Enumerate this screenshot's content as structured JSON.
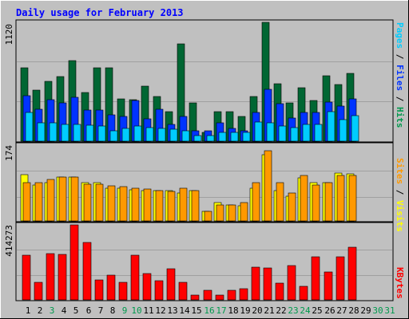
{
  "chart_data": {
    "type": "bar",
    "title": "Daily usage for February 2013",
    "days": [
      "1",
      "2",
      "3",
      "4",
      "5",
      "6",
      "7",
      "8",
      "9",
      "10",
      "11",
      "12",
      "13",
      "14",
      "15",
      "16",
      "17",
      "18",
      "19",
      "20",
      "21",
      "22",
      "23",
      "24",
      "25",
      "26",
      "27",
      "28",
      "29",
      "30",
      "31"
    ],
    "weekend_days": [
      "3",
      "9",
      "10",
      "16",
      "17",
      "23",
      "24",
      "30",
      "31"
    ],
    "panels": {
      "hits": {
        "right_label_parts": [
          "Pages",
          "Files",
          "Hits"
        ],
        "ymax_label": "1120",
        "ymax": 1120,
        "series": [
          {
            "name": "Hits",
            "color": "#006633",
            "values": [
              690,
              480,
              560,
              610,
              760,
              460,
              690,
              690,
              400,
              390,
              520,
              420,
              280,
              920,
              360,
              80,
              280,
              280,
              230,
              420,
              1120,
              540,
              360,
              500,
              380,
              620,
              530,
              640
            ]
          },
          {
            "name": "Files",
            "color": "#0033ff",
            "values": [
              430,
              300,
              390,
              360,
              410,
              290,
              290,
              250,
              230,
              380,
              210,
              300,
              160,
              230,
              100,
              100,
              170,
              120,
              100,
              270,
              490,
              350,
              220,
              270,
              270,
              370,
              330,
              400
            ]
          },
          {
            "name": "Pages",
            "color": "#00ccff",
            "values": [
              270,
              170,
              170,
              160,
              160,
              150,
              140,
              100,
              120,
              140,
              130,
              120,
              110,
              100,
              50,
              50,
              80,
              80,
              80,
              180,
              170,
              140,
              130,
              160,
              160,
              280,
              200,
              240
            ]
          }
        ]
      },
      "visits": {
        "right_label_parts": [
          "Sites",
          "Visits"
        ],
        "ymax_label": "174",
        "ymax": 174,
        "series": [
          {
            "name": "Visits",
            "color": "#ffff00",
            "values": [
              107,
              82,
              87,
              100,
              100,
              87,
              87,
              75,
              75,
              71,
              70,
              70,
              70,
              65,
              70,
              22,
              43,
              37,
              34,
              75,
              152,
              70,
              57,
              98,
              87,
              87,
              109,
              108
            ]
          },
          {
            "name": "Sites",
            "color": "#ff9900",
            "values": [
              87,
              87,
              95,
              100,
              100,
              84,
              85,
              80,
              78,
              75,
              73,
              70,
              68,
              75,
              70,
              22,
              37,
              37,
              43,
              87,
              162,
              87,
              65,
              104,
              82,
              87,
              104,
              105
            ]
          }
        ]
      },
      "kbytes": {
        "right_label": "KBytes",
        "ymax_label": "414273",
        "ymax": 414273,
        "series": [
          {
            "name": "KBytes",
            "color": "#ff0000",
            "values": [
              247000,
              95000,
              257000,
              252000,
              414273,
              318000,
              110000,
              135000,
              97000,
              249000,
              145000,
              105000,
              172000,
              95000,
              28000,
              52000,
              25000,
              51000,
              60000,
              180000,
              175000,
              93000,
              190000,
              75000,
              237000,
              155000,
              237000,
              290000
            ]
          }
        ]
      }
    }
  },
  "colors": {
    "background": "#c0c0c0",
    "title_text": "#0000ff",
    "weekday_label": "#000000",
    "weekend_label": "#00994d",
    "gridline": "#a0a0a0",
    "pages_label": "#00ccff",
    "files_label": "#0033ff",
    "hits_label": "#00994d",
    "sites_label": "#ff9900",
    "visits_label": "#ffff00",
    "kbytes_label": "#ff0000"
  }
}
